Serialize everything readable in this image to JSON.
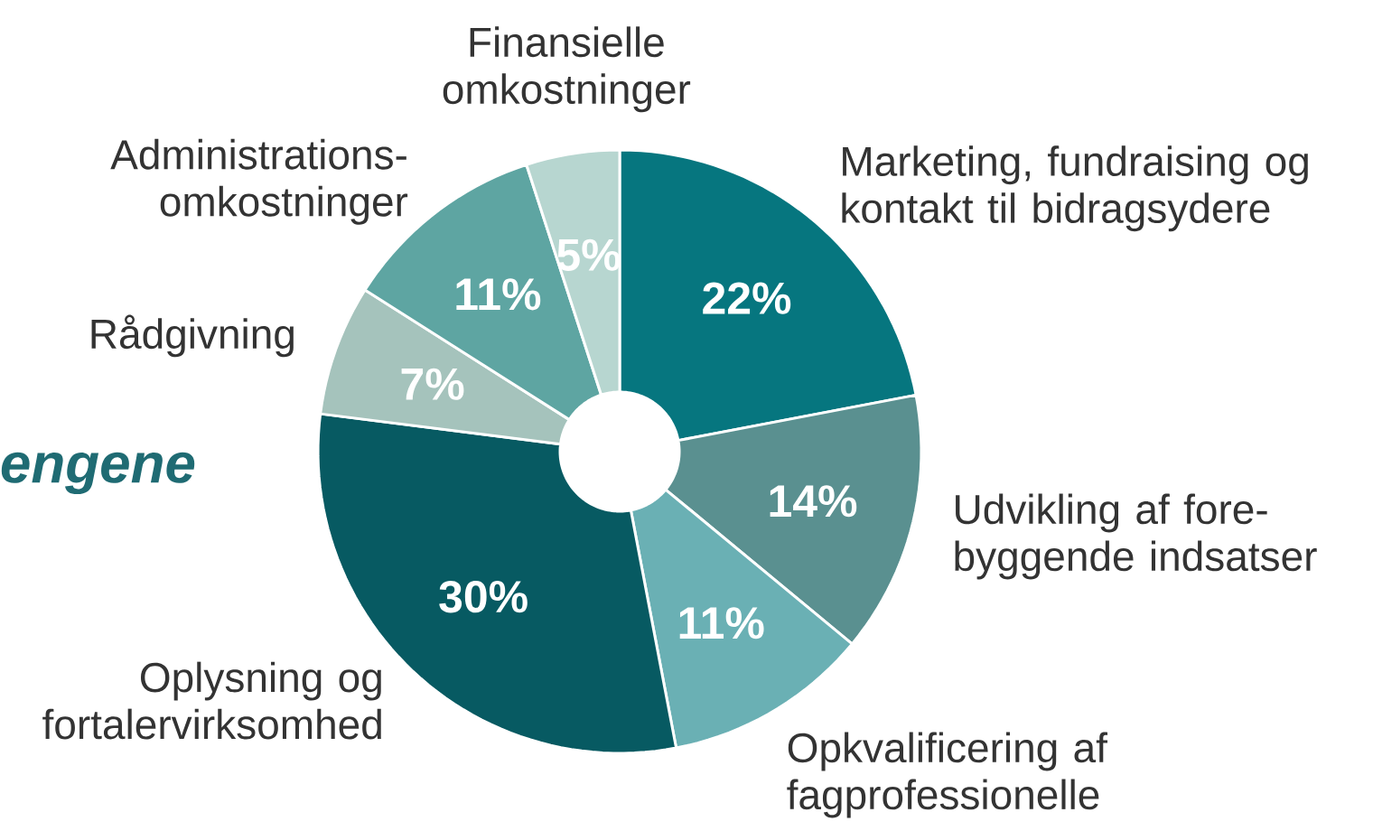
{
  "chart_data": {
    "type": "donut",
    "categories": [
      "Marketing, fundraising og kontakt til bidragsydere",
      "Udvikling af fore-byggende indsatser",
      "Opkvalificering af fagprofessionelle",
      "Oplysning og fortalervirksomhed",
      "Rådgivning",
      "Administrations-omkostninger",
      "Finansielle omkostninger"
    ],
    "values": [
      22,
      14,
      11,
      30,
      7,
      11,
      5
    ],
    "value_labels": [
      "22%",
      "14%",
      "11%",
      "30%",
      "7%",
      "11%",
      "5%"
    ],
    "colors": [
      "#06767f",
      "#5a9090",
      "#6ab0b4",
      "#075a62",
      "#a5c3bc",
      "#5ea5a2",
      "#b7d6d0"
    ],
    "annotations": [
      "engene"
    ]
  }
}
